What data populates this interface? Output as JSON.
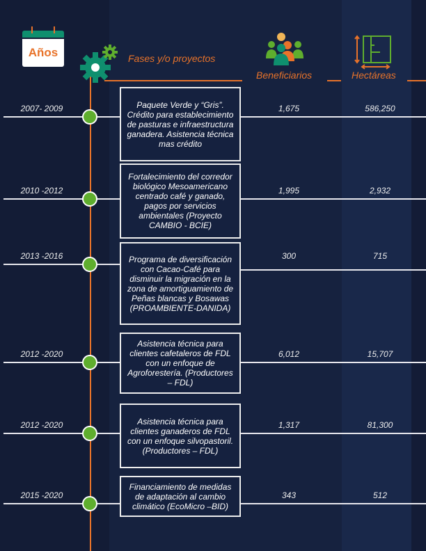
{
  "header": {
    "years": "Años",
    "phases": "Fases y/o proyectos",
    "beneficiaries": "Beneficiarios",
    "hectares": "Hectáreas"
  },
  "colors": {
    "background": "#131c36",
    "accent": "#e8732a",
    "green": "#5fae2e",
    "teal": "#0f8f6e"
  },
  "rows": [
    {
      "years": "2007- 2009",
      "project": "Paquete Verde y “Gris”. Crédito para establecimiento de pasturas e infraestructura ganadera. Asistencia técnica mas crédito",
      "beneficiaries": "1,675",
      "hectares": "586,250"
    },
    {
      "years": "2010 -2012",
      "project": "Fortalecimiento del corredor biológico Mesoamericano centrado café y ganado, pagos por servicios ambientales (Proyecto CAMBIO - BCIE)",
      "beneficiaries": "1,995",
      "hectares": "2,932"
    },
    {
      "years": "2013 -2016",
      "project": "Programa de diversificación con Cacao-Café para disminuir la migración en la zona de amortiguamiento  de Peñas blancas y Bosawas (PROAMBIENTE-DANIDA)",
      "beneficiaries": "300",
      "hectares": "715"
    },
    {
      "years": "2012 -2020",
      "project": "Asistencia técnica para clientes cafetaleros de FDL con un enfoque de Agroforestería. (Productores – FDL)",
      "beneficiaries": "6,012",
      "hectares": "15,707"
    },
    {
      "years": "2012 -2020",
      "project": "Asistencia técnica para clientes ganaderos de FDL con un enfoque silvopastoril. (Productores – FDL)",
      "beneficiaries": "1,317",
      "hectares": "81,300"
    },
    {
      "years": "2015 -2020",
      "project": "Financiamiento de medidas de adaptación al cambio climático  (EcoMicro –BID)",
      "beneficiaries": "343",
      "hectares": "512"
    }
  ]
}
